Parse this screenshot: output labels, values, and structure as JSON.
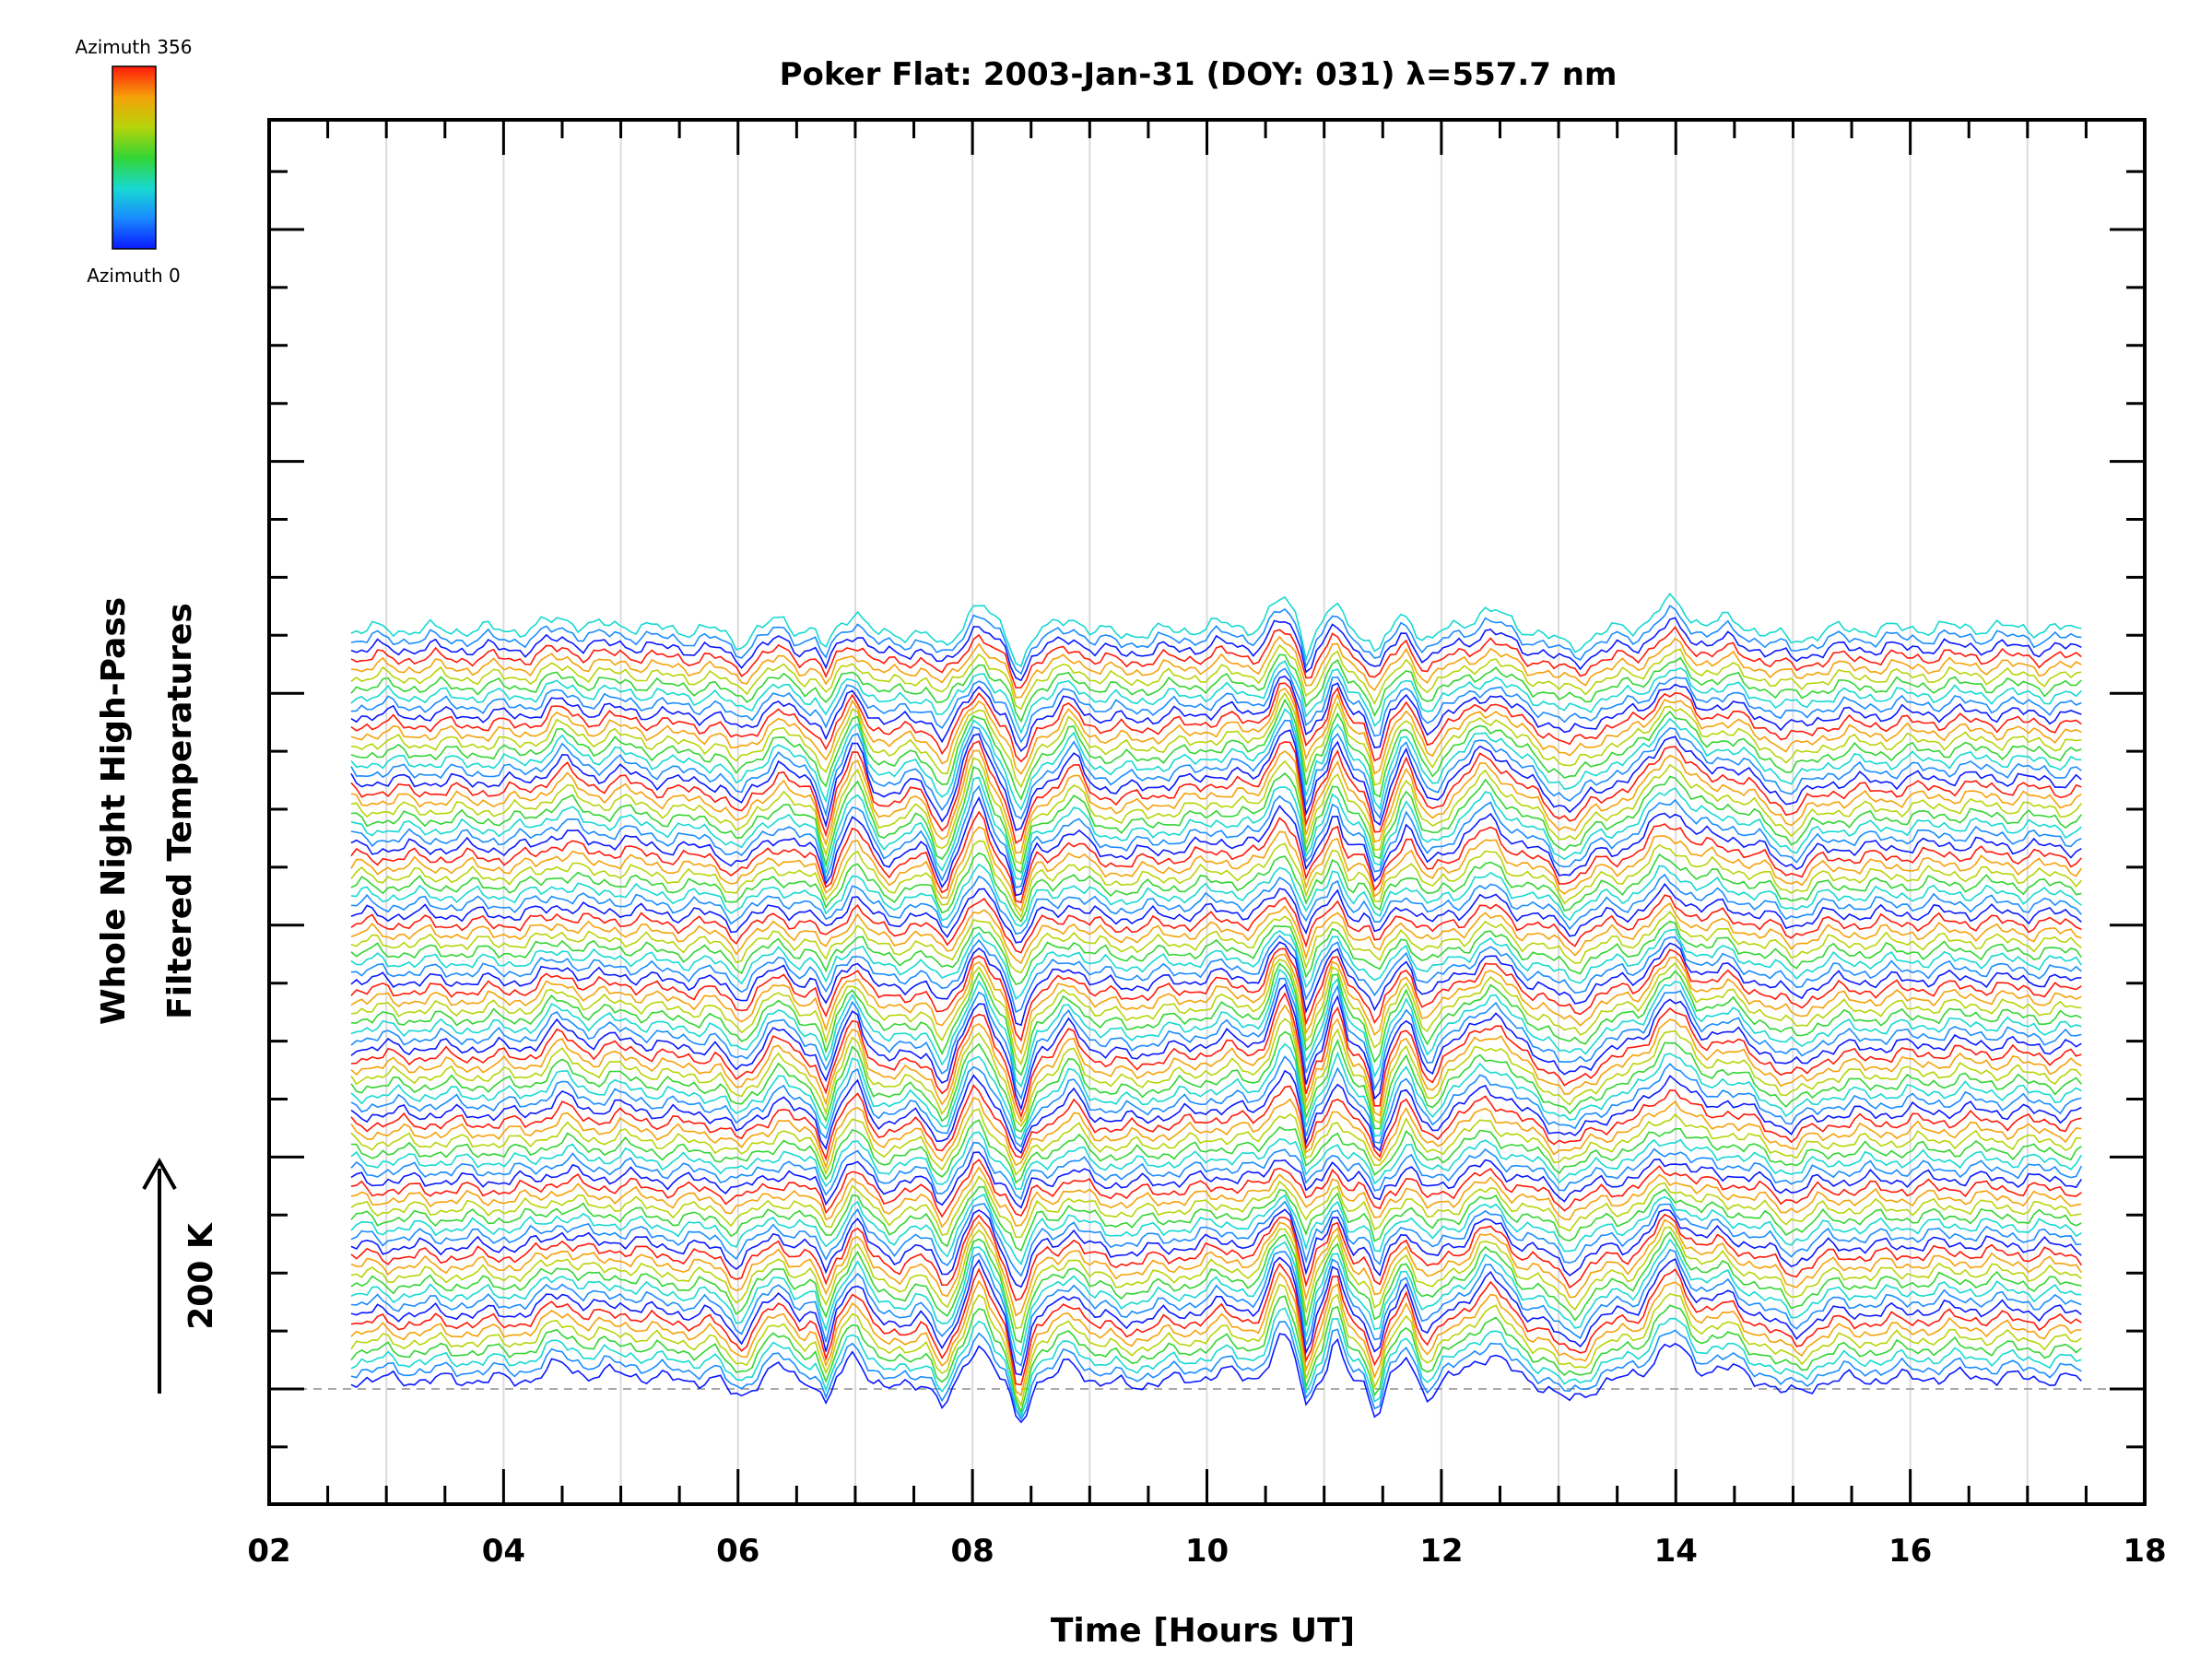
{
  "chart_data": {
    "type": "line",
    "title": "Poker Flat: 2003-Jan-31 (DOY: 031) λ=557.7 nm",
    "xlabel": "Time [Hours UT]",
    "ylabel_line1": "Whole Night High-Pass",
    "ylabel_line2": "Filtered Temperatures",
    "xlim": [
      2,
      18
    ],
    "x_range_data": [
      2.7,
      17.5
    ],
    "x_tick_labels": [
      "02",
      "04",
      "06",
      "08",
      "10",
      "12",
      "14",
      "16",
      "18"
    ],
    "scale_bar_label": "200 K",
    "colorbar": {
      "top_label": "Azimuth 356",
      "bottom_label": "Azimuth 0",
      "colors": [
        "#0a1aff",
        "#1a8cff",
        "#17d9d2",
        "#33d533",
        "#b8d40a",
        "#f5a20a",
        "#ff1a0a"
      ]
    },
    "series_count": 80,
    "series_note": "stacked traces, colour cycles by azimuth",
    "y_ticks_labeled": false,
    "grid": "vertical gridlines at each hour",
    "zero_line": "dashed"
  }
}
